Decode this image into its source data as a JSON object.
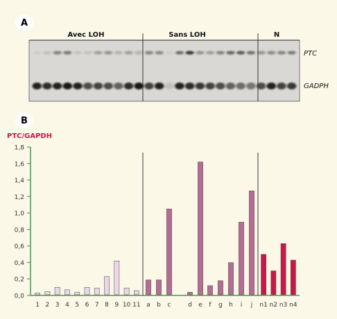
{
  "panel_a": {
    "label": "A",
    "groups": [
      "Avec LOH",
      "Sans LOH",
      "N"
    ],
    "bands": [
      "PTC",
      "GADPH"
    ],
    "lane_intensity": {
      "ptc": [
        0.05,
        0.1,
        0.45,
        0.5,
        0.1,
        0.1,
        0.3,
        0.35,
        0.2,
        0.3,
        0.2,
        0.45,
        0.4,
        0.05,
        0.55,
        0.85,
        0.35,
        0.3,
        0.45,
        0.6,
        0.65,
        0.55,
        0.35,
        0.4,
        0.45,
        0.5
      ],
      "gadph": [
        0.9,
        0.85,
        0.9,
        0.95,
        0.9,
        0.7,
        0.75,
        0.7,
        0.6,
        0.85,
        0.95,
        0.75,
        0.9,
        0.1,
        0.9,
        0.85,
        0.8,
        0.75,
        0.7,
        0.6,
        0.55,
        0.5,
        0.7,
        0.9,
        0.75,
        0.8
      ]
    }
  },
  "panel_b": {
    "label": "B"
  },
  "chart_data": {
    "type": "bar",
    "ylabel": "PTC/GAPDH",
    "ylim": [
      0,
      1.8
    ],
    "yticks": [
      "0,0",
      "0,2",
      "0,4",
      "0,6",
      "0,8",
      "1,0",
      "1,2",
      "1,4",
      "1,6",
      "1,8"
    ],
    "categories": [
      "1",
      "2",
      "3",
      "4",
      "5",
      "6",
      "7",
      "8",
      "9",
      "10",
      "11",
      "a",
      "b",
      "c",
      "d",
      "e",
      "f",
      "g",
      "h",
      "i",
      "j",
      "n1",
      "n2",
      "n3",
      "n4"
    ],
    "values": [
      0.02,
      0.04,
      0.09,
      0.06,
      0.03,
      0.09,
      0.08,
      0.22,
      0.41,
      0.08,
      0.05,
      0.18,
      0.18,
      1.04,
      0.03,
      1.61,
      0.11,
      0.17,
      0.39,
      0.88,
      1.26,
      0.49,
      0.29,
      0.62,
      0.42
    ],
    "groups": [
      {
        "name": "Avec LOH",
        "categories": [
          "1",
          "2",
          "3",
          "4",
          "5",
          "6",
          "7",
          "8",
          "9",
          "10",
          "11"
        ],
        "color": "#ecd6e6"
      },
      {
        "name": "Sans LOH",
        "categories": [
          "a",
          "b",
          "c",
          "d",
          "e",
          "f",
          "g",
          "h",
          "i",
          "j"
        ],
        "color": "#b56d93"
      },
      {
        "name": "N",
        "categories": [
          "n1",
          "n2",
          "n3",
          "n4"
        ],
        "color": "#c8184a"
      }
    ],
    "separators_after": [
      "11",
      "j"
    ],
    "grid": false
  }
}
